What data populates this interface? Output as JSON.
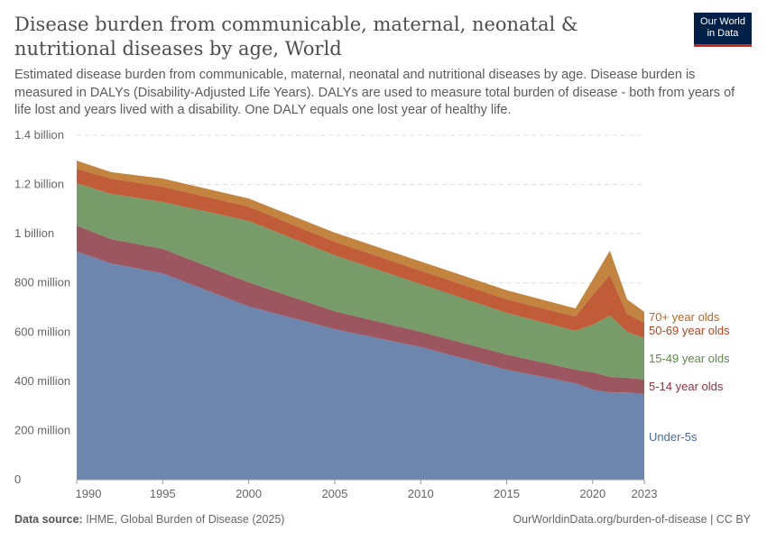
{
  "header": {
    "title": "Disease burden from communicable, maternal, neonatal & nutritional diseases by age, World",
    "subtitle": "Estimated disease burden from communicable, maternal, neonatal and nutritional diseases by age. Disease burden is measured in DALYs (Disability-Adjusted Life Years). DALYs are used to measure total burden of disease - both from years of life lost and years lived with a disability. One DALY equals one lost year of healthy life.",
    "logo_line1": "Our World",
    "logo_line2": "in Data"
  },
  "footer": {
    "source_label": "Data source:",
    "source_text": "IHME, Global Burden of Disease (2025)",
    "url": "OurWorldinData.org/burden-of-disease | CC BY"
  },
  "chart_data": {
    "type": "area",
    "stacked": true,
    "grid": "horizontal dashed",
    "legend_placement": "right (inline labels)",
    "xlim": [
      1990,
      2023
    ],
    "ylim": [
      0,
      1400000000
    ],
    "y_ticks": [
      {
        "value": 0,
        "label": "0"
      },
      {
        "value": 200000000,
        "label": "200 million"
      },
      {
        "value": 400000000,
        "label": "400 million"
      },
      {
        "value": 600000000,
        "label": "600 million"
      },
      {
        "value": 800000000,
        "label": "800 million"
      },
      {
        "value": 1000000000,
        "label": "1 billion"
      },
      {
        "value": 1200000000,
        "label": "1.2 billion"
      },
      {
        "value": 1400000000,
        "label": "1.4 billion"
      }
    ],
    "x_ticks": [
      "1990",
      "1995",
      "2000",
      "2005",
      "2010",
      "2015",
      "2020",
      "2023"
    ],
    "x": [
      1990,
      1992,
      1995,
      2000,
      2005,
      2010,
      2015,
      2019,
      2020,
      2021,
      2022,
      2023
    ],
    "series": [
      {
        "name": "Under-5s",
        "color": "#6d86ad",
        "label_color": "#4a6aa0",
        "values": [
          927000000,
          879000000,
          839000000,
          704000000,
          612000000,
          539000000,
          447000000,
          392000000,
          366000000,
          355000000,
          355000000,
          348000000
        ]
      },
      {
        "name": "5-14 year olds",
        "color": "#9c5660",
        "label_color": "#8c3340",
        "values": [
          106000000,
          99000000,
          99000000,
          98000000,
          73000000,
          62000000,
          62000000,
          55000000,
          70000000,
          63000000,
          59000000,
          59000000
        ]
      },
      {
        "name": "15-49 year olds",
        "color": "#789c69",
        "label_color": "#5d8a4a",
        "values": [
          172000000,
          184000000,
          191000000,
          250000000,
          227000000,
          194000000,
          169000000,
          158000000,
          194000000,
          249000000,
          187000000,
          168000000
        ]
      },
      {
        "name": "50-69 year olds",
        "color": "#c05c38",
        "label_color": "#b5441f",
        "values": [
          59000000,
          62000000,
          62000000,
          58000000,
          55000000,
          55000000,
          55000000,
          58000000,
          121000000,
          165000000,
          73000000,
          63000000
        ]
      },
      {
        "name": "70+ year olds",
        "color": "#c2843f",
        "label_color": "#c0651f",
        "values": [
          33000000,
          26000000,
          33000000,
          33000000,
          37000000,
          37000000,
          37000000,
          33000000,
          62000000,
          99000000,
          59000000,
          44000000
        ]
      }
    ]
  }
}
